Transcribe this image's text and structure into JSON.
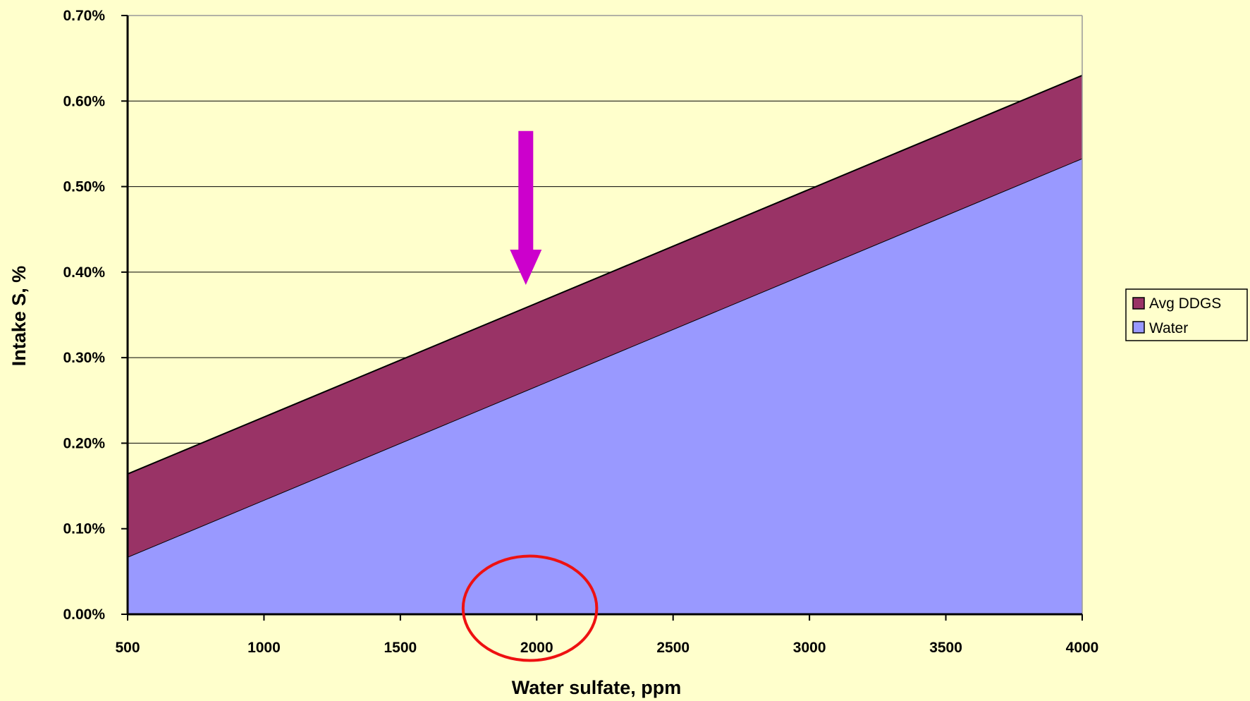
{
  "chart_data": {
    "type": "area",
    "stacked": true,
    "title": "",
    "xlabel": "Water sulfate, ppm",
    "ylabel": "Intake S, %",
    "x": [
      500,
      4000
    ],
    "x_ticks": [
      "500",
      "1000",
      "1500",
      "2000",
      "2500",
      "3000",
      "3500",
      "4000"
    ],
    "y_ticks": [
      "0.00%",
      "0.10%",
      "0.20%",
      "0.30%",
      "0.40%",
      "0.50%",
      "0.60%",
      "0.70%"
    ],
    "xlim": [
      500,
      4000
    ],
    "ylim": [
      0,
      0.7
    ],
    "grid": "horizontal",
    "legend_position": "right",
    "series": [
      {
        "name": "Water",
        "values": [
          0.067,
          0.533
        ],
        "color": "#9999ff"
      },
      {
        "name": "Avg DDGS",
        "values": [
          0.097,
          0.097
        ],
        "color": "#993366"
      }
    ],
    "legend_order": [
      "Avg DDGS",
      "Water"
    ],
    "annotations": [
      {
        "kind": "arrow",
        "color": "#cc00cc",
        "x": 1960,
        "y_from": 0.565,
        "y_to": 0.385
      },
      {
        "kind": "ellipse",
        "color": "#ee1111",
        "x_center": 1975,
        "x_radius": 245,
        "y_center": 0.007,
        "y_radius": 0.061
      }
    ],
    "background": "#ffffcc"
  }
}
